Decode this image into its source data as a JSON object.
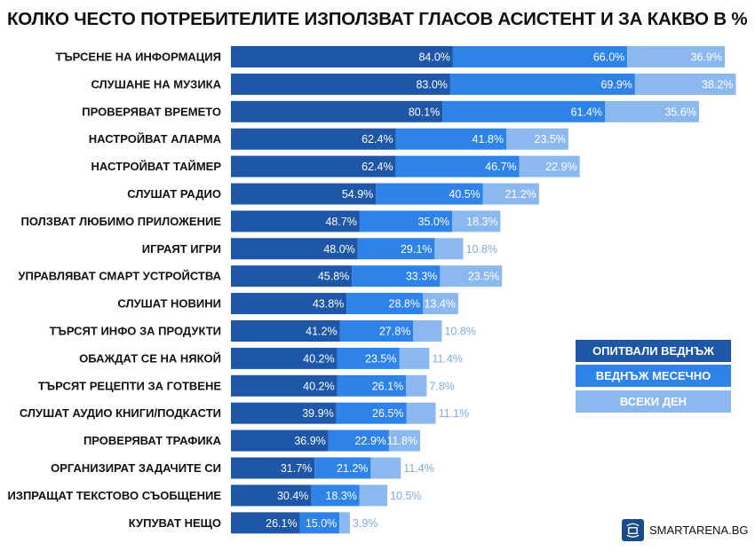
{
  "title": "КОЛКО ЧЕСТО ПОТРЕБИТЕЛИТЕ ИЗПОЛЗВАТ ГЛАСОВ АСИСТЕНТ И ЗА КАКВО В %",
  "brand": "SMARTARENA.BG",
  "colors": {
    "series1": "#1e56a8",
    "series2": "#2e82e8",
    "series3": "#8cb8f0"
  },
  "chart_data": {
    "type": "bar",
    "orientation": "horizontal",
    "stacked": true,
    "title": "КОЛКО ЧЕСТО ПОТРЕБИТЕЛИТЕ ИЗПОЛЗВАТ ГЛАСОВ АСИСТЕНТ И ЗА КАКВО В %",
    "legend_position": "right",
    "grid": false,
    "categories": [
      "ТЪРСЕНЕ НА ИНФОРМАЦИЯ",
      "СЛУШАНЕ НА МУЗИКА",
      "ПРОВЕРЯВАТ ВРЕМЕТО",
      "НАСТРОЙВАТ АЛАРМА",
      "НАСТРОЙВАТ ТАЙМЕР",
      "СЛУШАТ РАДИО",
      "ПОЛЗВАТ ЛЮБИМО ПРИЛОЖЕНИЕ",
      "ИГРАЯТ ИГРИ",
      "УПРАВЛЯВАТ СМАРТ УСТРОЙСТВА",
      "СЛУШАТ НОВИНИ",
      "ТЪРСЯТ ИНФО ЗА ПРОДУКТИ",
      "ОБАЖДАТ СЕ НА НЯКОЙ",
      "ТЪРСЯТ РЕЦЕПТИ ЗА ГОТВЕНЕ",
      "СЛУШАТ АУДИО КНИГИ/ПОДКАСТИ",
      "ПРОВЕРЯВАТ ТРАФИКА",
      "ОРГАНИЗИРАТ ЗАДАЧИТЕ СИ",
      "ИЗПРАЩАТ ТЕКСТОВО СЪОБЩЕНИЕ",
      "КУПУВАТ НЕЩО"
    ],
    "series": [
      {
        "name": "ОПИТВАЛИ ВЕДНЪЖ",
        "values": [
          84.0,
          83.0,
          80.1,
          62.4,
          62.4,
          54.9,
          48.7,
          48.0,
          45.8,
          43.8,
          41.2,
          40.2,
          40.2,
          39.9,
          36.9,
          31.7,
          30.4,
          26.1
        ]
      },
      {
        "name": "ВЕДНЪЖ МЕСЕЧНО",
        "values": [
          66.0,
          69.9,
          61.4,
          41.8,
          46.7,
          40.5,
          35.0,
          29.1,
          33.3,
          28.8,
          27.8,
          23.5,
          26.1,
          26.5,
          22.9,
          21.2,
          18.3,
          15.0
        ]
      },
      {
        "name": "ВСЕКИ ДЕН",
        "values": [
          36.9,
          38.2,
          35.6,
          23.5,
          22.9,
          21.2,
          18.3,
          10.8,
          23.5,
          13.4,
          10.8,
          11.4,
          7.8,
          11.1,
          11.8,
          11.4,
          10.5,
          3.9
        ]
      }
    ]
  }
}
